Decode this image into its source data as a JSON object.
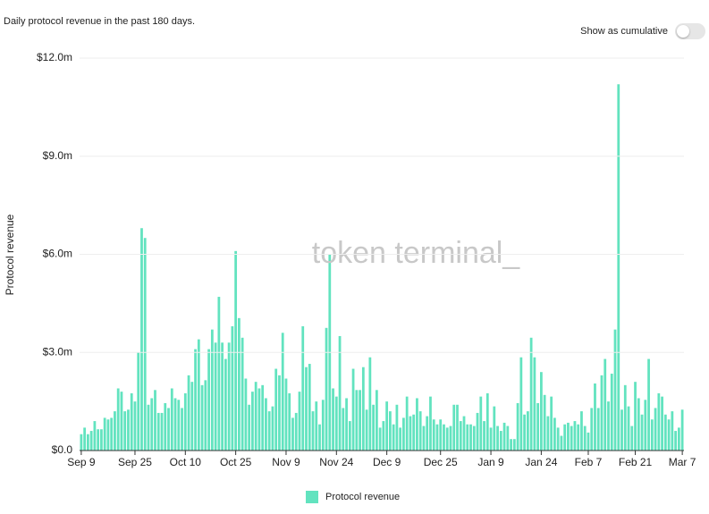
{
  "chart_data": {
    "type": "bar",
    "subtitle": "Daily protocol revenue in the past 180 days.",
    "toggle_label": "Show as cumulative",
    "watermark": "token terminal_",
    "y_label": "Protocol revenue",
    "categories": [
      "Sep 9",
      null,
      null,
      null,
      null,
      null,
      null,
      null,
      null,
      null,
      null,
      null,
      null,
      null,
      null,
      null,
      "Sep 25",
      null,
      null,
      null,
      null,
      null,
      null,
      null,
      null,
      null,
      null,
      null,
      null,
      null,
      null,
      "Oct 10",
      null,
      null,
      null,
      null,
      null,
      null,
      null,
      null,
      null,
      null,
      null,
      null,
      null,
      null,
      "Oct 25",
      null,
      null,
      null,
      null,
      null,
      null,
      null,
      null,
      null,
      null,
      null,
      null,
      null,
      null,
      "Nov 9",
      null,
      null,
      null,
      null,
      null,
      null,
      null,
      null,
      null,
      null,
      null,
      null,
      null,
      null,
      "Nov 24",
      null,
      null,
      null,
      null,
      null,
      null,
      null,
      null,
      null,
      null,
      null,
      null,
      null,
      null,
      "Dec 9",
      null,
      null,
      null,
      null,
      null,
      null,
      null,
      null,
      null,
      null,
      null,
      null,
      null,
      null,
      null,
      "Dec 25",
      null,
      null,
      null,
      null,
      null,
      null,
      null,
      null,
      null,
      null,
      null,
      null,
      null,
      null,
      "Jan 9",
      null,
      null,
      null,
      null,
      null,
      null,
      null,
      null,
      null,
      null,
      null,
      null,
      null,
      null,
      "Jan 24",
      null,
      null,
      null,
      null,
      null,
      null,
      null,
      null,
      null,
      null,
      null,
      null,
      null,
      "Feb 7",
      null,
      null,
      null,
      null,
      null,
      null,
      null,
      null,
      null,
      null,
      null,
      null,
      null,
      "Feb 21",
      null,
      null,
      null,
      null,
      null,
      null,
      null,
      null,
      null,
      null,
      null,
      null,
      null,
      "Mar 7"
    ],
    "series": [
      {
        "name": "Protocol revenue",
        "color": "#62e3bf",
        "values": [
          0.5,
          0.7,
          0.5,
          0.6,
          0.9,
          0.65,
          0.65,
          1.0,
          0.95,
          1.0,
          1.2,
          1.9,
          1.8,
          1.2,
          1.25,
          1.75,
          1.5,
          3.0,
          6.8,
          6.5,
          1.4,
          1.6,
          1.85,
          1.15,
          1.15,
          1.45,
          1.3,
          1.9,
          1.6,
          1.55,
          1.3,
          1.75,
          2.3,
          2.1,
          3.1,
          3.4,
          2.0,
          2.15,
          3.1,
          3.7,
          3.3,
          4.7,
          3.3,
          2.8,
          3.3,
          3.8,
          6.1,
          4.05,
          3.45,
          2.2,
          1.4,
          1.8,
          2.1,
          1.9,
          2.0,
          1.6,
          1.2,
          1.35,
          2.5,
          2.3,
          3.6,
          2.2,
          1.75,
          1.0,
          1.15,
          1.8,
          3.8,
          2.55,
          2.65,
          1.2,
          1.5,
          0.8,
          1.55,
          3.75,
          6.0,
          1.9,
          1.65,
          3.5,
          1.3,
          1.6,
          0.9,
          2.5,
          1.85,
          1.85,
          2.55,
          1.25,
          2.85,
          1.4,
          1.85,
          0.7,
          0.9,
          1.5,
          1.2,
          0.8,
          1.4,
          0.7,
          1.0,
          1.65,
          1.05,
          1.1,
          1.6,
          1.2,
          0.75,
          1.05,
          1.65,
          0.95,
          0.8,
          0.95,
          0.8,
          0.7,
          0.75,
          1.4,
          1.4,
          0.9,
          1.05,
          0.8,
          0.8,
          0.75,
          1.15,
          1.65,
          0.9,
          1.75,
          0.7,
          1.35,
          0.75,
          0.6,
          0.85,
          0.75,
          0.35,
          0.35,
          1.45,
          2.85,
          1.1,
          1.2,
          3.45,
          2.85,
          1.45,
          2.4,
          1.7,
          1.05,
          1.65,
          1.0,
          0.7,
          0.45,
          0.8,
          0.85,
          0.75,
          0.9,
          0.8,
          1.2,
          0.75,
          0.55,
          1.3,
          2.05,
          1.3,
          2.3,
          2.8,
          1.5,
          2.35,
          3.7,
          11.2,
          1.25,
          2.0,
          1.35,
          0.75,
          2.1,
          1.6,
          1.1,
          1.55,
          2.8,
          0.95,
          1.3,
          1.75,
          1.65,
          1.1,
          0.95,
          1.2,
          0.6,
          0.7,
          1.25
        ]
      }
    ],
    "ylim": [
      0,
      12
    ],
    "yticks": [
      {
        "value": 0,
        "label": "$0.0"
      },
      {
        "value": 3,
        "label": "$3.0m"
      },
      {
        "value": 6,
        "label": "$6.0m"
      },
      {
        "value": 9,
        "label": "$9.0m"
      },
      {
        "value": 12,
        "label": "$12.0m"
      }
    ],
    "grid": true
  }
}
